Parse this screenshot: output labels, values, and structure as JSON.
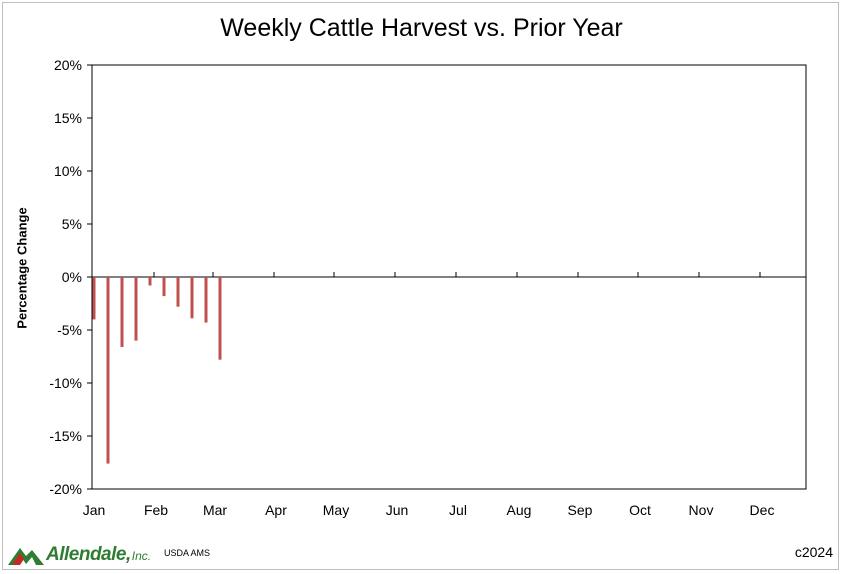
{
  "chart_data": {
    "type": "bar",
    "title": "Weekly Cattle Harvest vs. Prior Year",
    "ylabel": "Percentage Change",
    "xlabel": "",
    "ylim": [
      -20,
      20
    ],
    "yticks": [
      20,
      15,
      10,
      5,
      0,
      -5,
      -10,
      -15,
      -20
    ],
    "ytick_labels": [
      "20%",
      "15%",
      "10%",
      "5%",
      "0%",
      "-5%",
      "-10%",
      "-15%",
      "-20%"
    ],
    "months": [
      "Jan",
      "Feb",
      "Mar",
      "Apr",
      "May",
      "Jun",
      "Jul",
      "Aug",
      "Sep",
      "Oct",
      "Nov",
      "Dec"
    ],
    "x_unit": "week of year",
    "weeks": [
      1,
      2,
      3,
      4,
      5,
      6,
      7,
      8,
      9,
      10
    ],
    "values": [
      -4.0,
      -17.6,
      -6.6,
      -6.0,
      -0.8,
      -1.8,
      -2.8,
      -3.9,
      -4.3,
      -7.8
    ],
    "bar_color": "#c0504d",
    "grid": false,
    "legend": "none"
  },
  "footer": {
    "logo_text": "Allendale,",
    "logo_inc": "Inc.",
    "source": "USDA AMS",
    "copyright": "c2024"
  },
  "colors": {
    "brand_green": "#2e7d32",
    "brand_red": "#c62828"
  }
}
